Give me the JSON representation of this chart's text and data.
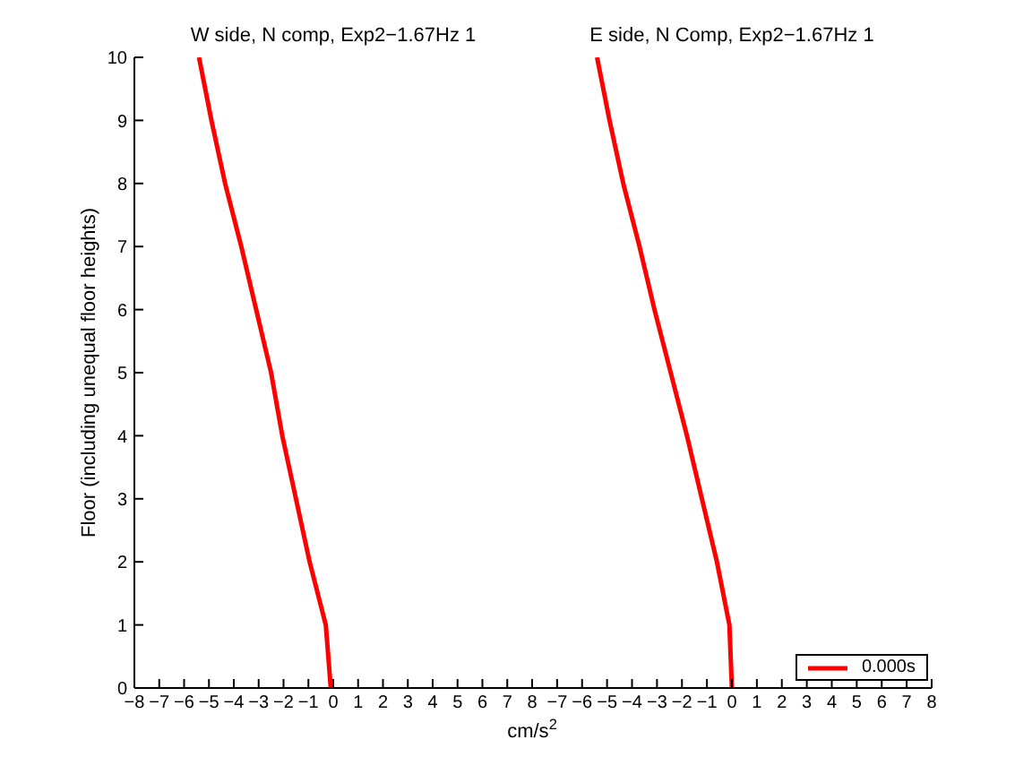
{
  "chart_data": [
    {
      "type": "line",
      "title": "W side, N comp, Exp2−1.67Hz 1",
      "xlabel": "cm/s$^{2}$",
      "ylabel": "Floor (including unequal floor heights)",
      "xlim": [
        -8,
        8
      ],
      "xticks": [
        -8,
        -7,
        -6,
        -5,
        -4,
        -3,
        -2,
        -1,
        0,
        1,
        2,
        3,
        4,
        5,
        6,
        7,
        8
      ],
      "ylim": [
        0,
        10
      ],
      "yticks": [
        0,
        1,
        2,
        3,
        4,
        5,
        6,
        7,
        8,
        9,
        10
      ],
      "grid": false,
      "legend": false,
      "series": [
        {
          "color": "#ff0000",
          "x": [
            -0.1,
            -0.3,
            -0.95,
            -1.5,
            -2.05,
            -2.5,
            -3.1,
            -3.7,
            -4.35,
            -4.9,
            -5.4
          ],
          "values": [
            0,
            1,
            2,
            3,
            4,
            5,
            6,
            7,
            8,
            9,
            10
          ]
        }
      ]
    },
    {
      "type": "line",
      "title": "E side, N Comp, Exp2−1.67Hz 1",
      "xlim": [
        -8,
        8
      ],
      "xticks": [
        {
          "value": -8,
          "label": null
        },
        -7,
        -6,
        -5,
        -4,
        -3,
        -2,
        -1,
        0,
        1,
        2,
        3,
        4,
        5,
        6,
        7,
        8
      ],
      "ylim": [
        0,
        10
      ],
      "tick_labels": "x",
      "grid": false,
      "legend": "bottom right",
      "series": [
        {
          "name": "0.000s",
          "color": "#ff0000",
          "x": [
            0.0,
            -0.1,
            -0.6,
            -1.2,
            -1.8,
            -2.45,
            -3.1,
            -3.7,
            -4.35,
            -4.9,
            -5.4
          ],
          "values": [
            0,
            1,
            2,
            3,
            4,
            5,
            6,
            7,
            8,
            9,
            10
          ]
        }
      ]
    }
  ]
}
